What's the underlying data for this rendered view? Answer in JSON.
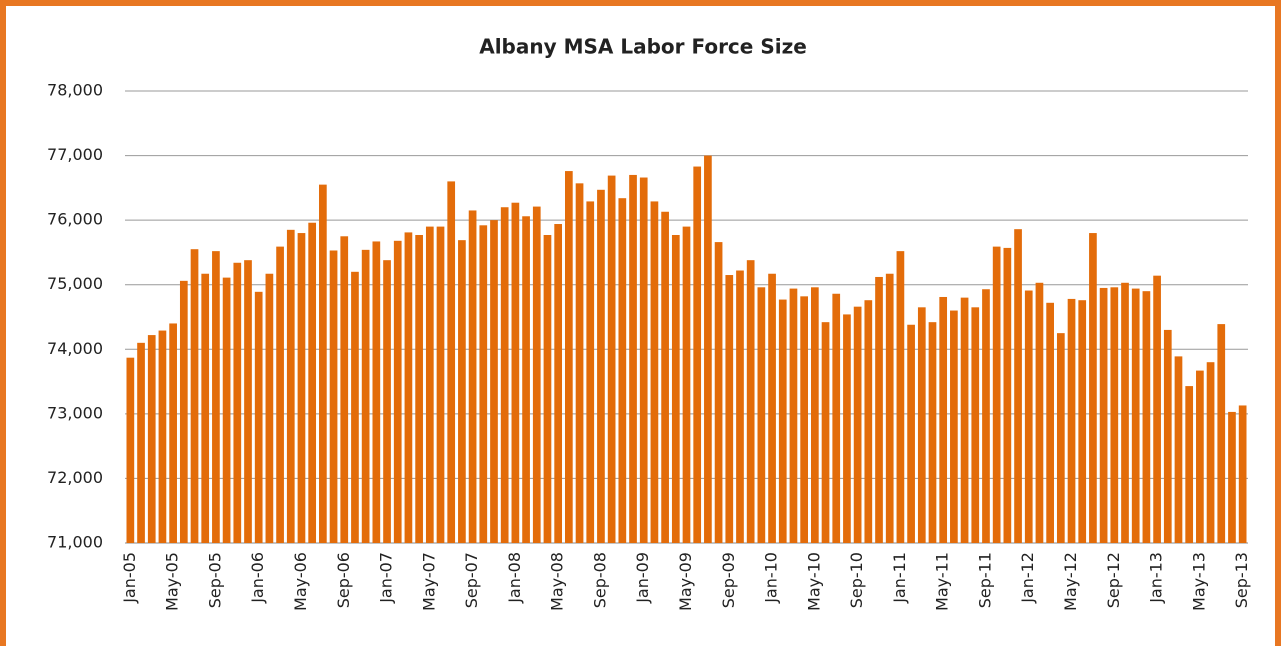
{
  "chart_data": {
    "type": "bar",
    "title": "Albany MSA Labor Force Size",
    "categories": [
      "Jan-05",
      null,
      null,
      null,
      "May-05",
      null,
      null,
      null,
      "Sep-05",
      null,
      null,
      null,
      "Jan-06",
      null,
      null,
      null,
      "May-06",
      null,
      null,
      null,
      "Sep-06",
      null,
      null,
      null,
      "Jan-07",
      null,
      null,
      null,
      "May-07",
      null,
      null,
      null,
      "Sep-07",
      null,
      null,
      null,
      "Jan-08",
      null,
      null,
      null,
      "May-08",
      null,
      null,
      null,
      "Sep-08",
      null,
      null,
      null,
      "Jan-09",
      null,
      null,
      null,
      "May-09",
      null,
      null,
      null,
      "Sep-09",
      null,
      null,
      null,
      "Jan-10",
      null,
      null,
      null,
      "May-10",
      null,
      null,
      null,
      "Sep-10",
      null,
      null,
      null,
      "Jan-11",
      null,
      null,
      null,
      "May-11",
      null,
      null,
      null,
      "Sep-11",
      null,
      null,
      null,
      "Jan-12",
      null,
      null,
      null,
      "May-12",
      null,
      null,
      null,
      "Sep-12",
      null,
      null,
      null,
      "Jan-13",
      null,
      null,
      null,
      "May-13",
      null,
      null,
      null,
      "Sep-13"
    ],
    "values": [
      73870,
      74100,
      74220,
      74290,
      74400,
      75060,
      75550,
      75170,
      75520,
      75110,
      75340,
      75380,
      74890,
      75170,
      75590,
      75850,
      75800,
      75960,
      76550,
      75530,
      75750,
      75200,
      75540,
      75670,
      75380,
      75680,
      75810,
      75770,
      75900,
      75900,
      76600,
      75690,
      76150,
      75920,
      76000,
      76200,
      76270,
      76060,
      76210,
      75770,
      75940,
      76760,
      76570,
      76290,
      76470,
      76690,
      76340,
      76700,
      76660,
      76290,
      76130,
      75770,
      75900,
      76830,
      77000,
      75660,
      75150,
      75220,
      75380,
      74960,
      75170,
      74770,
      74940,
      74820,
      74960,
      74420,
      74860,
      74540,
      74660,
      74760,
      75120,
      75170,
      75520,
      74380,
      74650,
      74420,
      74810,
      74600,
      74800,
      74650,
      74930,
      75590,
      75570,
      75860,
      74910,
      75030,
      74720,
      74250,
      74780,
      74760,
      75800,
      74950,
      74960,
      75030,
      74940,
      74900,
      75140,
      74300,
      73890,
      73430,
      73670,
      73800,
      74390,
      73030,
      73130
    ],
    "color": "#e36c0a",
    "ylim": [
      71000,
      78000
    ],
    "yticks": [
      {
        "value": 71000,
        "label": "71,000"
      },
      {
        "value": 72000,
        "label": "72,000"
      },
      {
        "value": 73000,
        "label": "73,000"
      },
      {
        "value": 74000,
        "label": "74,000"
      },
      {
        "value": 75000,
        "label": "75,000"
      },
      {
        "value": 76000,
        "label": "76,000"
      },
      {
        "value": 77000,
        "label": "77,000"
      },
      {
        "value": 78000,
        "label": "78,000"
      }
    ],
    "grid": true
  }
}
